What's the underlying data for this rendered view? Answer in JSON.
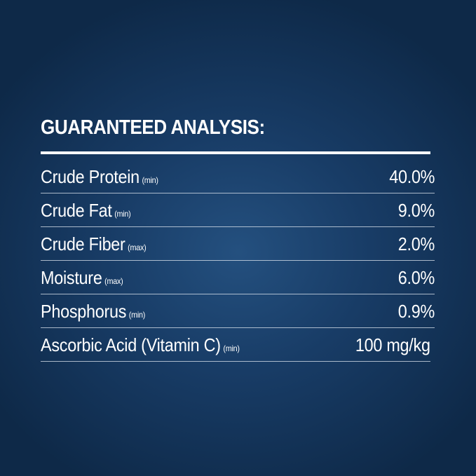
{
  "header": {
    "title": "GUARANTEED ANALYSIS:"
  },
  "table": {
    "rows": [
      {
        "name": "Crude Protein",
        "qualifier": "(min)",
        "value": "40.0%"
      },
      {
        "name": "Crude Fat",
        "qualifier": "(min)",
        "value": "9.0%"
      },
      {
        "name": "Crude Fiber",
        "qualifier": "(max)",
        "value": "2.0%"
      },
      {
        "name": "Moisture",
        "qualifier": "(max)",
        "value": "6.0%"
      },
      {
        "name": "Phosphorus",
        "qualifier": "(min)",
        "value": "0.9%"
      },
      {
        "name": "Ascorbic Acid (Vitamin C)",
        "qualifier": "(min)",
        "value": "100 mg/kg"
      }
    ]
  }
}
